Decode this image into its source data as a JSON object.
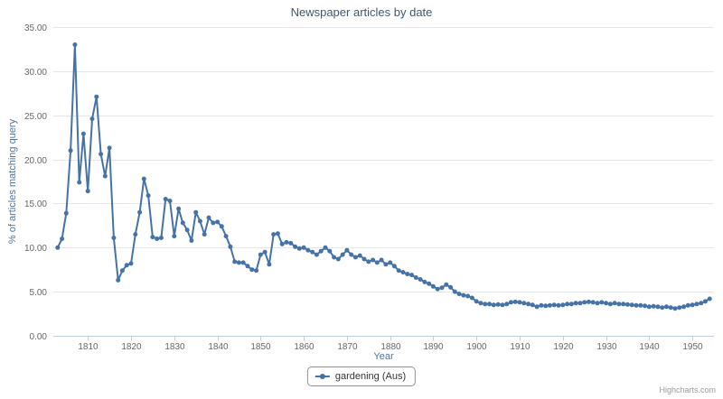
{
  "credits": {
    "label": "Highcharts.com"
  },
  "colors": {
    "series": "#4572A7",
    "title": "#3E576F",
    "axis_title": "#4D759E",
    "tick_label": "#666666",
    "grid": "#E6E6E6",
    "axis_line": "#C0D0E0",
    "legend_border": "#909090",
    "credits": "#999999"
  },
  "chart_data": {
    "type": "line",
    "title": "Newspaper articles by date",
    "xlabel": "Year",
    "ylabel": "% of articles matching query",
    "legend_position": "bottom-center",
    "grid": "horizontal",
    "marker": "circle",
    "xlim": [
      1802,
      1955
    ],
    "ylim": [
      0,
      35
    ],
    "xticks": [
      1810,
      1820,
      1830,
      1840,
      1850,
      1860,
      1870,
      1880,
      1890,
      1900,
      1910,
      1920,
      1930,
      1940,
      1950
    ],
    "yticks": [
      0,
      5,
      10,
      15,
      20,
      25,
      30,
      35
    ],
    "ytick_labels": [
      "0.00",
      "5.00",
      "10.00",
      "15.00",
      "20.00",
      "25.00",
      "30.00",
      "35.00"
    ],
    "series": [
      {
        "name": "gardening (Aus)",
        "color": "#4572A7",
        "points": [
          [
            1803,
            10.0
          ],
          [
            1804,
            11.0
          ],
          [
            1805,
            13.9
          ],
          [
            1806,
            21.0
          ],
          [
            1807,
            33.0
          ],
          [
            1808,
            17.4
          ],
          [
            1809,
            22.9
          ],
          [
            1810,
            16.4
          ],
          [
            1811,
            24.6
          ],
          [
            1812,
            27.1
          ],
          [
            1813,
            20.6
          ],
          [
            1814,
            18.1
          ],
          [
            1815,
            21.3
          ],
          [
            1816,
            11.1
          ],
          [
            1817,
            6.3
          ],
          [
            1818,
            7.4
          ],
          [
            1819,
            8.0
          ],
          [
            1820,
            8.2
          ],
          [
            1821,
            11.5
          ],
          [
            1822,
            14.0
          ],
          [
            1823,
            17.8
          ],
          [
            1824,
            15.9
          ],
          [
            1825,
            11.2
          ],
          [
            1826,
            11.0
          ],
          [
            1827,
            11.1
          ],
          [
            1828,
            15.5
          ],
          [
            1829,
            15.3
          ],
          [
            1830,
            11.3
          ],
          [
            1831,
            14.4
          ],
          [
            1832,
            12.8
          ],
          [
            1833,
            12.0
          ],
          [
            1834,
            10.8
          ],
          [
            1835,
            14.0
          ],
          [
            1836,
            13.0
          ],
          [
            1837,
            11.5
          ],
          [
            1838,
            13.4
          ],
          [
            1839,
            12.8
          ],
          [
            1840,
            12.9
          ],
          [
            1841,
            12.4
          ],
          [
            1842,
            11.3
          ],
          [
            1843,
            10.1
          ],
          [
            1844,
            8.4
          ],
          [
            1845,
            8.3
          ],
          [
            1846,
            8.3
          ],
          [
            1847,
            7.9
          ],
          [
            1848,
            7.5
          ],
          [
            1849,
            7.4
          ],
          [
            1850,
            9.2
          ],
          [
            1851,
            9.5
          ],
          [
            1852,
            8.1
          ],
          [
            1853,
            11.5
          ],
          [
            1854,
            11.6
          ],
          [
            1855,
            10.4
          ],
          [
            1856,
            10.6
          ],
          [
            1857,
            10.5
          ],
          [
            1858,
            10.1
          ],
          [
            1859,
            9.9
          ],
          [
            1860,
            10.0
          ],
          [
            1861,
            9.7
          ],
          [
            1862,
            9.5
          ],
          [
            1863,
            9.2
          ],
          [
            1864,
            9.6
          ],
          [
            1865,
            10.0
          ],
          [
            1866,
            9.6
          ],
          [
            1867,
            8.9
          ],
          [
            1868,
            8.7
          ],
          [
            1869,
            9.2
          ],
          [
            1870,
            9.7
          ],
          [
            1871,
            9.2
          ],
          [
            1872,
            8.9
          ],
          [
            1873,
            9.1
          ],
          [
            1874,
            8.7
          ],
          [
            1875,
            8.4
          ],
          [
            1876,
            8.6
          ],
          [
            1877,
            8.3
          ],
          [
            1878,
            8.6
          ],
          [
            1879,
            8.1
          ],
          [
            1880,
            8.3
          ],
          [
            1881,
            7.9
          ],
          [
            1882,
            7.4
          ],
          [
            1883,
            7.2
          ],
          [
            1884,
            7.0
          ],
          [
            1885,
            6.9
          ],
          [
            1886,
            6.6
          ],
          [
            1887,
            6.4
          ],
          [
            1888,
            6.1
          ],
          [
            1889,
            5.9
          ],
          [
            1890,
            5.6
          ],
          [
            1891,
            5.3
          ],
          [
            1892,
            5.45
          ],
          [
            1893,
            5.8
          ],
          [
            1894,
            5.5
          ],
          [
            1895,
            5.0
          ],
          [
            1896,
            4.75
          ],
          [
            1897,
            4.6
          ],
          [
            1898,
            4.5
          ],
          [
            1899,
            4.3
          ],
          [
            1900,
            3.9
          ],
          [
            1901,
            3.7
          ],
          [
            1902,
            3.6
          ],
          [
            1903,
            3.6
          ],
          [
            1904,
            3.5
          ],
          [
            1905,
            3.55
          ],
          [
            1906,
            3.5
          ],
          [
            1907,
            3.6
          ],
          [
            1908,
            3.8
          ],
          [
            1909,
            3.85
          ],
          [
            1910,
            3.8
          ],
          [
            1911,
            3.7
          ],
          [
            1912,
            3.6
          ],
          [
            1913,
            3.5
          ],
          [
            1914,
            3.3
          ],
          [
            1915,
            3.45
          ],
          [
            1916,
            3.4
          ],
          [
            1917,
            3.45
          ],
          [
            1918,
            3.5
          ],
          [
            1919,
            3.45
          ],
          [
            1920,
            3.5
          ],
          [
            1921,
            3.6
          ],
          [
            1922,
            3.6
          ],
          [
            1923,
            3.7
          ],
          [
            1924,
            3.7
          ],
          [
            1925,
            3.8
          ],
          [
            1926,
            3.85
          ],
          [
            1927,
            3.8
          ],
          [
            1928,
            3.7
          ],
          [
            1929,
            3.8
          ],
          [
            1930,
            3.7
          ],
          [
            1931,
            3.6
          ],
          [
            1932,
            3.7
          ],
          [
            1933,
            3.6
          ],
          [
            1934,
            3.6
          ],
          [
            1935,
            3.55
          ],
          [
            1936,
            3.5
          ],
          [
            1937,
            3.45
          ],
          [
            1938,
            3.45
          ],
          [
            1939,
            3.4
          ],
          [
            1940,
            3.3
          ],
          [
            1941,
            3.35
          ],
          [
            1942,
            3.3
          ],
          [
            1943,
            3.2
          ],
          [
            1944,
            3.3
          ],
          [
            1945,
            3.2
          ],
          [
            1946,
            3.1
          ],
          [
            1947,
            3.2
          ],
          [
            1948,
            3.3
          ],
          [
            1949,
            3.45
          ],
          [
            1950,
            3.5
          ],
          [
            1951,
            3.6
          ],
          [
            1952,
            3.7
          ],
          [
            1953,
            3.9
          ],
          [
            1954,
            4.2
          ]
        ]
      }
    ]
  }
}
